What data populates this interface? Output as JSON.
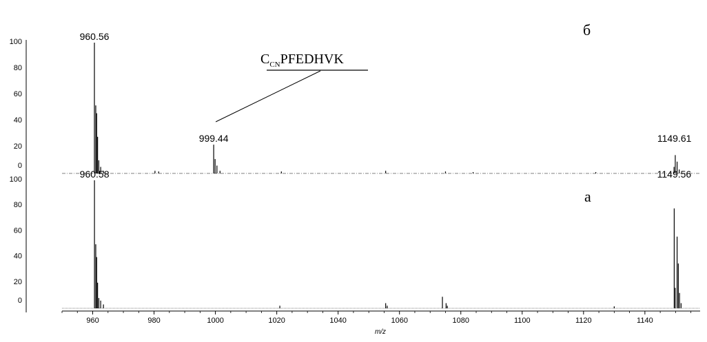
{
  "chart_data": [
    {
      "type": "line",
      "panel_label": "б",
      "xlim": [
        950,
        1158
      ],
      "ylim": [
        0,
        100
      ],
      "yticks": [
        "100",
        "80",
        "60",
        "40",
        "20",
        "0"
      ],
      "peaks": [
        {
          "x": 960.56,
          "y": 100
        },
        {
          "x": 961.0,
          "y": 52
        },
        {
          "x": 961.3,
          "y": 46
        },
        {
          "x": 961.6,
          "y": 28
        },
        {
          "x": 962.0,
          "y": 10
        },
        {
          "x": 962.6,
          "y": 5
        },
        {
          "x": 963.5,
          "y": 2
        },
        {
          "x": 980.3,
          "y": 2
        },
        {
          "x": 981.5,
          "y": 1.5
        },
        {
          "x": 999.44,
          "y": 22
        },
        {
          "x": 999.9,
          "y": 11
        },
        {
          "x": 1000.5,
          "y": 6
        },
        {
          "x": 1001.5,
          "y": 2
        },
        {
          "x": 1021.5,
          "y": 1.5
        },
        {
          "x": 1055.5,
          "y": 2
        },
        {
          "x": 1075.0,
          "y": 1.5
        },
        {
          "x": 1084.0,
          "y": 1
        },
        {
          "x": 1124.0,
          "y": 1
        },
        {
          "x": 1149.5,
          "y": 5
        },
        {
          "x": 1149.9,
          "y": 14
        },
        {
          "x": 1150.5,
          "y": 9
        },
        {
          "x": 1151.2,
          "y": 3
        }
      ],
      "peak_labels": [
        {
          "text": "960.56",
          "x": 960.56,
          "y": 100
        },
        {
          "text": "999.44",
          "x": 999.44,
          "y": 22
        },
        {
          "text": "1149.61",
          "x": 1149.61,
          "y": 22
        }
      ],
      "annotation": {
        "prefix": "C",
        "subscript": "CN",
        "suffix": "PFEDHVK",
        "points_to_x": 999.44
      }
    },
    {
      "type": "line",
      "panel_label": "а",
      "xlim": [
        950,
        1158
      ],
      "ylim": [
        0,
        100
      ],
      "yticks": [
        "100",
        "80",
        "60",
        "40",
        "20",
        "0"
      ],
      "xticks": [
        960,
        980,
        1000,
        1020,
        1040,
        1060,
        1080,
        1100,
        1120,
        1140
      ],
      "xlabel": "m/z",
      "peaks": [
        {
          "x": 960.58,
          "y": 100
        },
        {
          "x": 961.0,
          "y": 50
        },
        {
          "x": 961.3,
          "y": 40
        },
        {
          "x": 961.6,
          "y": 20
        },
        {
          "x": 962.0,
          "y": 8
        },
        {
          "x": 962.6,
          "y": 6
        },
        {
          "x": 963.5,
          "y": 3
        },
        {
          "x": 1021.0,
          "y": 2
        },
        {
          "x": 1055.5,
          "y": 4
        },
        {
          "x": 1056.0,
          "y": 2
        },
        {
          "x": 1074.0,
          "y": 9
        },
        {
          "x": 1075.2,
          "y": 4
        },
        {
          "x": 1075.6,
          "y": 2
        },
        {
          "x": 1130.0,
          "y": 1.5
        },
        {
          "x": 1149.56,
          "y": 78
        },
        {
          "x": 1149.9,
          "y": 16
        },
        {
          "x": 1150.5,
          "y": 56
        },
        {
          "x": 1150.9,
          "y": 35
        },
        {
          "x": 1151.3,
          "y": 12
        },
        {
          "x": 1151.8,
          "y": 4
        }
      ],
      "peak_labels": [
        {
          "text": "960.58",
          "x": 960.58,
          "y": 100
        },
        {
          "text": "1149.56",
          "x": 1149.56,
          "y": 100
        }
      ]
    }
  ]
}
